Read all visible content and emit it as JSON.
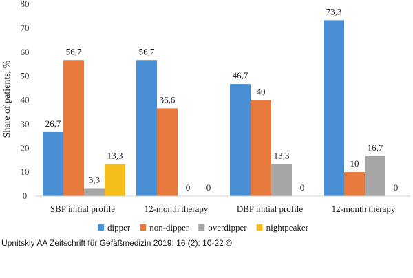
{
  "chart_data": {
    "type": "bar",
    "title": "",
    "xlabel": "",
    "ylabel": "Share of patients, %",
    "ylim": [
      0,
      80
    ],
    "yticks": [
      0,
      10,
      20,
      30,
      40,
      50,
      60,
      70,
      80
    ],
    "legend_position": "bottom",
    "categories": [
      "SBP initial profile",
      "12-month therapy",
      "DBP initial profile",
      "12-month therapy"
    ],
    "series": [
      {
        "name": "dipper",
        "color": "#4a8fd4",
        "values": [
          26.7,
          56.7,
          46.7,
          73.3
        ],
        "labels": [
          "26,7",
          "56,7",
          "46,7",
          "73,3"
        ]
      },
      {
        "name": "non-dipper",
        "color": "#e8793d",
        "values": [
          56.7,
          36.6,
          40,
          10
        ],
        "labels": [
          "56,7",
          "36,6",
          "40",
          "10"
        ]
      },
      {
        "name": "overdipper",
        "color": "#a6a6a6",
        "values": [
          3.3,
          0,
          13.3,
          16.7
        ],
        "labels": [
          "3,3",
          "0",
          "13,3",
          "16,7"
        ]
      },
      {
        "name": "nightpeaker",
        "color": "#f5be1a",
        "values": [
          13.3,
          0,
          null,
          null
        ],
        "labels": [
          "13,3",
          "0",
          "0",
          "0"
        ]
      }
    ]
  },
  "footer": {
    "credit": "Upnitskiy AA Zeitschrift für Gefäßmedizin 2019; 16 (2): 10-22 ©"
  }
}
